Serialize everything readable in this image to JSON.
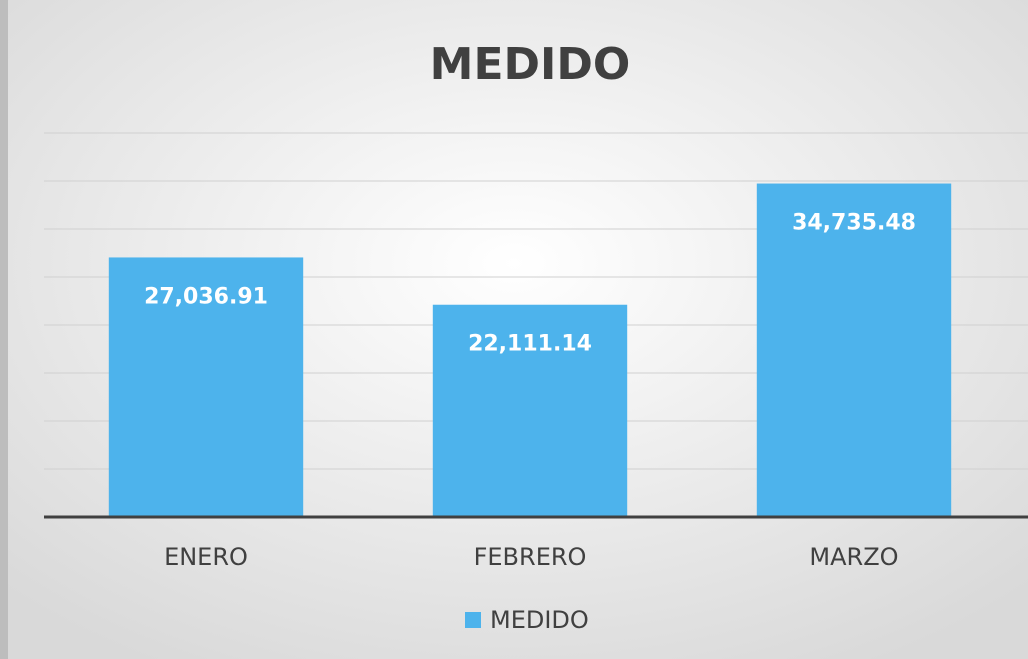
{
  "chart_data": {
    "type": "bar",
    "title": "MEDIDO",
    "categories": [
      "ENERO",
      "FEBRERO",
      "MARZO"
    ],
    "series": [
      {
        "name": "MEDIDO",
        "color": "#4db3ec",
        "values": [
          27036.91,
          22111.14,
          34735.48
        ],
        "value_labels": [
          "27,036.91",
          "22,111.14",
          "34,735.48"
        ]
      }
    ],
    "ylim": [
      0,
      40000
    ],
    "yticks": [
      0,
      5000,
      10000,
      15000,
      20000,
      25000,
      30000,
      35000,
      40000
    ],
    "grid": true,
    "legend": "bottom"
  }
}
